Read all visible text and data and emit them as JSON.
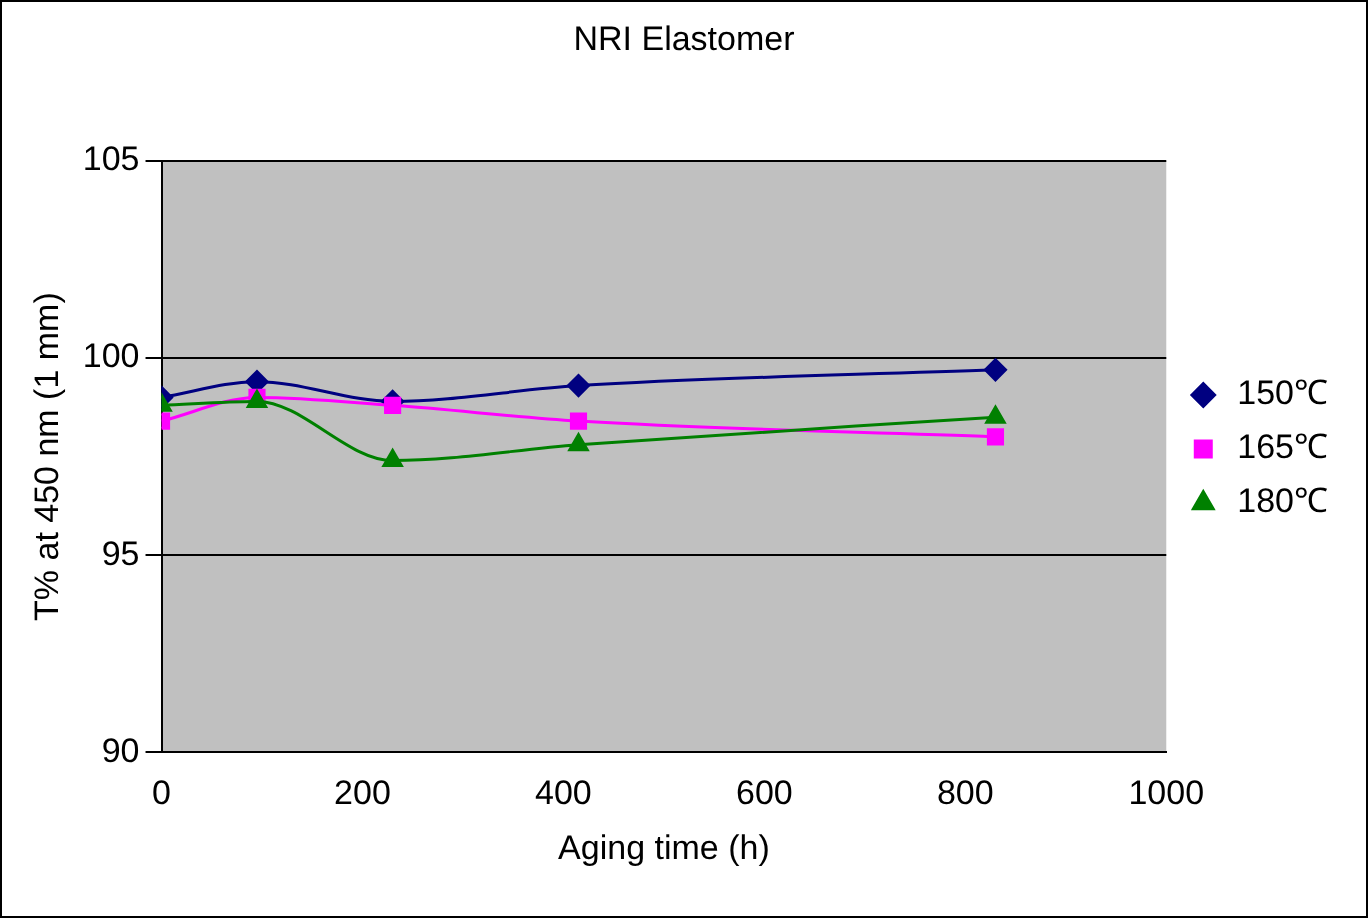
{
  "chart_data": {
    "type": "line",
    "title": "NRI Elastomer",
    "xlabel": "Aging time (h)",
    "ylabel": "T% at 450 nm (1 mm)",
    "x": [
      0,
      95,
      230,
      415,
      830
    ],
    "series": [
      {
        "name": "150℃",
        "color": "#000080",
        "marker": "diamond",
        "values": [
          99.0,
          99.4,
          98.9,
          99.3,
          99.7
        ]
      },
      {
        "name": "165℃",
        "color": "#ff00ff",
        "marker": "square",
        "values": [
          98.4,
          99.0,
          98.8,
          98.4,
          98.0
        ]
      },
      {
        "name": "180℃",
        "color": "#008000",
        "marker": "triangle",
        "values": [
          98.8,
          98.9,
          97.4,
          97.8,
          98.5
        ]
      }
    ],
    "xlim": [
      0,
      1000
    ],
    "xticks": [
      0,
      200,
      400,
      600,
      800,
      1000
    ],
    "ylim": [
      90,
      105
    ],
    "yticks": [
      90,
      95,
      100,
      105
    ],
    "grid": "y",
    "legend": "right"
  }
}
